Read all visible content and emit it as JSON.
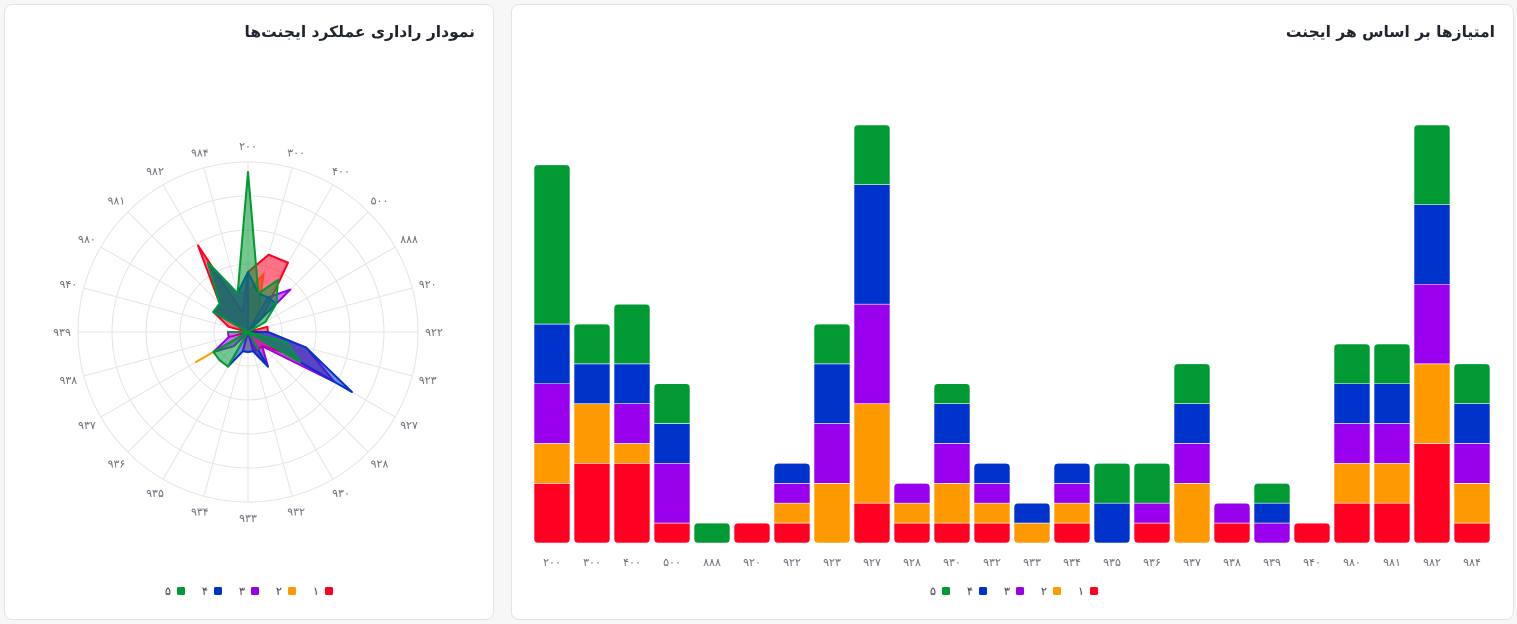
{
  "radar_card": {
    "title": "نمودار راداری عملکرد ایجنت‌ها"
  },
  "bar_card": {
    "title": "امتیازها بر اساس هر ایجنت"
  },
  "colors": {
    "s1": "#ff0022",
    "s2": "#ff9900",
    "s3": "#9900ee",
    "s4": "#0033cc",
    "s5": "#009933"
  },
  "chart_data": [
    {
      "type": "bar",
      "stacked": true,
      "title": "امتیازها بر اساس هر ایجنت",
      "categories": [
        "۲۰۰",
        "۳۰۰",
        "۴۰۰",
        "۵۰۰",
        "۸۸۸",
        "۹۲۰",
        "۹۲۲",
        "۹۲۳",
        "۹۲۷",
        "۹۲۸",
        "۹۳۰",
        "۹۳۲",
        "۹۳۳",
        "۹۳۴",
        "۹۳۵",
        "۹۳۶",
        "۹۳۷",
        "۹۳۸",
        "۹۳۹",
        "۹۴۰",
        "۹۸۰",
        "۹۸۱",
        "۹۸۲",
        "۹۸۴"
      ],
      "series": [
        {
          "name": "۱",
          "values": [
            3,
            4,
            4,
            1,
            0,
            1,
            1,
            0,
            2,
            1,
            1,
            1,
            0,
            1,
            0,
            1,
            0,
            1,
            0,
            1,
            2,
            2,
            5,
            1
          ]
        },
        {
          "name": "۲",
          "values": [
            2,
            3,
            1,
            0,
            0,
            0,
            1,
            3,
            5,
            1,
            2,
            1,
            1,
            1,
            0,
            0,
            3,
            0,
            0,
            0,
            2,
            2,
            4,
            2
          ]
        },
        {
          "name": "۳",
          "values": [
            3,
            0,
            2,
            3,
            0,
            0,
            1,
            3,
            5,
            1,
            2,
            1,
            0,
            1,
            0,
            1,
            2,
            1,
            1,
            0,
            2,
            2,
            4,
            2
          ]
        },
        {
          "name": "۴",
          "values": [
            3,
            2,
            2,
            2,
            0,
            0,
            1,
            3,
            6,
            0,
            2,
            1,
            1,
            1,
            2,
            0,
            2,
            0,
            1,
            0,
            2,
            2,
            4,
            2
          ]
        },
        {
          "name": "۵",
          "values": [
            8,
            2,
            3,
            2,
            1,
            0,
            0,
            2,
            3,
            0,
            1,
            0,
            0,
            0,
            2,
            2,
            2,
            0,
            1,
            0,
            2,
            2,
            4,
            2
          ]
        }
      ],
      "ylim": [
        0,
        21
      ],
      "legend": "bottom-center"
    },
    {
      "type": "radar",
      "title": "نمودار راداری عملکرد ایجنت‌ها",
      "axes": [
        "۲۰۰",
        "۳۰۰",
        "۴۰۰",
        "۵۰۰",
        "۸۸۸",
        "۹۲۰",
        "۹۲۲",
        "۹۲۳",
        "۹۲۷",
        "۹۲۸",
        "۹۳۰",
        "۹۳۲",
        "۹۳۳",
        "۹۳۴",
        "۹۳۵",
        "۹۳۶",
        "۹۳۷",
        "۹۳۸",
        "۹۳۹",
        "۹۴۰",
        "۹۸۰",
        "۹۸۱",
        "۹۸۲",
        "۹۸۴"
      ],
      "series": [
        {
          "name": "۱",
          "values": [
            3,
            4,
            4,
            1,
            0,
            1,
            1,
            0,
            2,
            1,
            1,
            1,
            0,
            1,
            0,
            1,
            0,
            1,
            0,
            1,
            2,
            2,
            5,
            1
          ]
        },
        {
          "name": "۲",
          "values": [
            2,
            3,
            1,
            0,
            0,
            0,
            1,
            3,
            5,
            1,
            2,
            1,
            1,
            1,
            0,
            0,
            3,
            0,
            0,
            0,
            2,
            2,
            4,
            2
          ]
        },
        {
          "name": "۳",
          "values": [
            3,
            0,
            2,
            3,
            0,
            0,
            1,
            3,
            5,
            1,
            2,
            1,
            0,
            1,
            0,
            1,
            2,
            1,
            1,
            0,
            2,
            2,
            4,
            2
          ]
        },
        {
          "name": "۴",
          "values": [
            3,
            2,
            2,
            2,
            0,
            0,
            1,
            3,
            6,
            0,
            2,
            1,
            1,
            1,
            2,
            0,
            2,
            0,
            1,
            0,
            2,
            2,
            4,
            2
          ]
        },
        {
          "name": "۵",
          "values": [
            8,
            2,
            3,
            2,
            1,
            0,
            0,
            2,
            3,
            0,
            1,
            0,
            0,
            0,
            2,
            2,
            2,
            0,
            1,
            0,
            2,
            2,
            4,
            2
          ]
        }
      ],
      "rmax": 8.5,
      "grid_rings": 5,
      "legend": "bottom-center"
    }
  ]
}
